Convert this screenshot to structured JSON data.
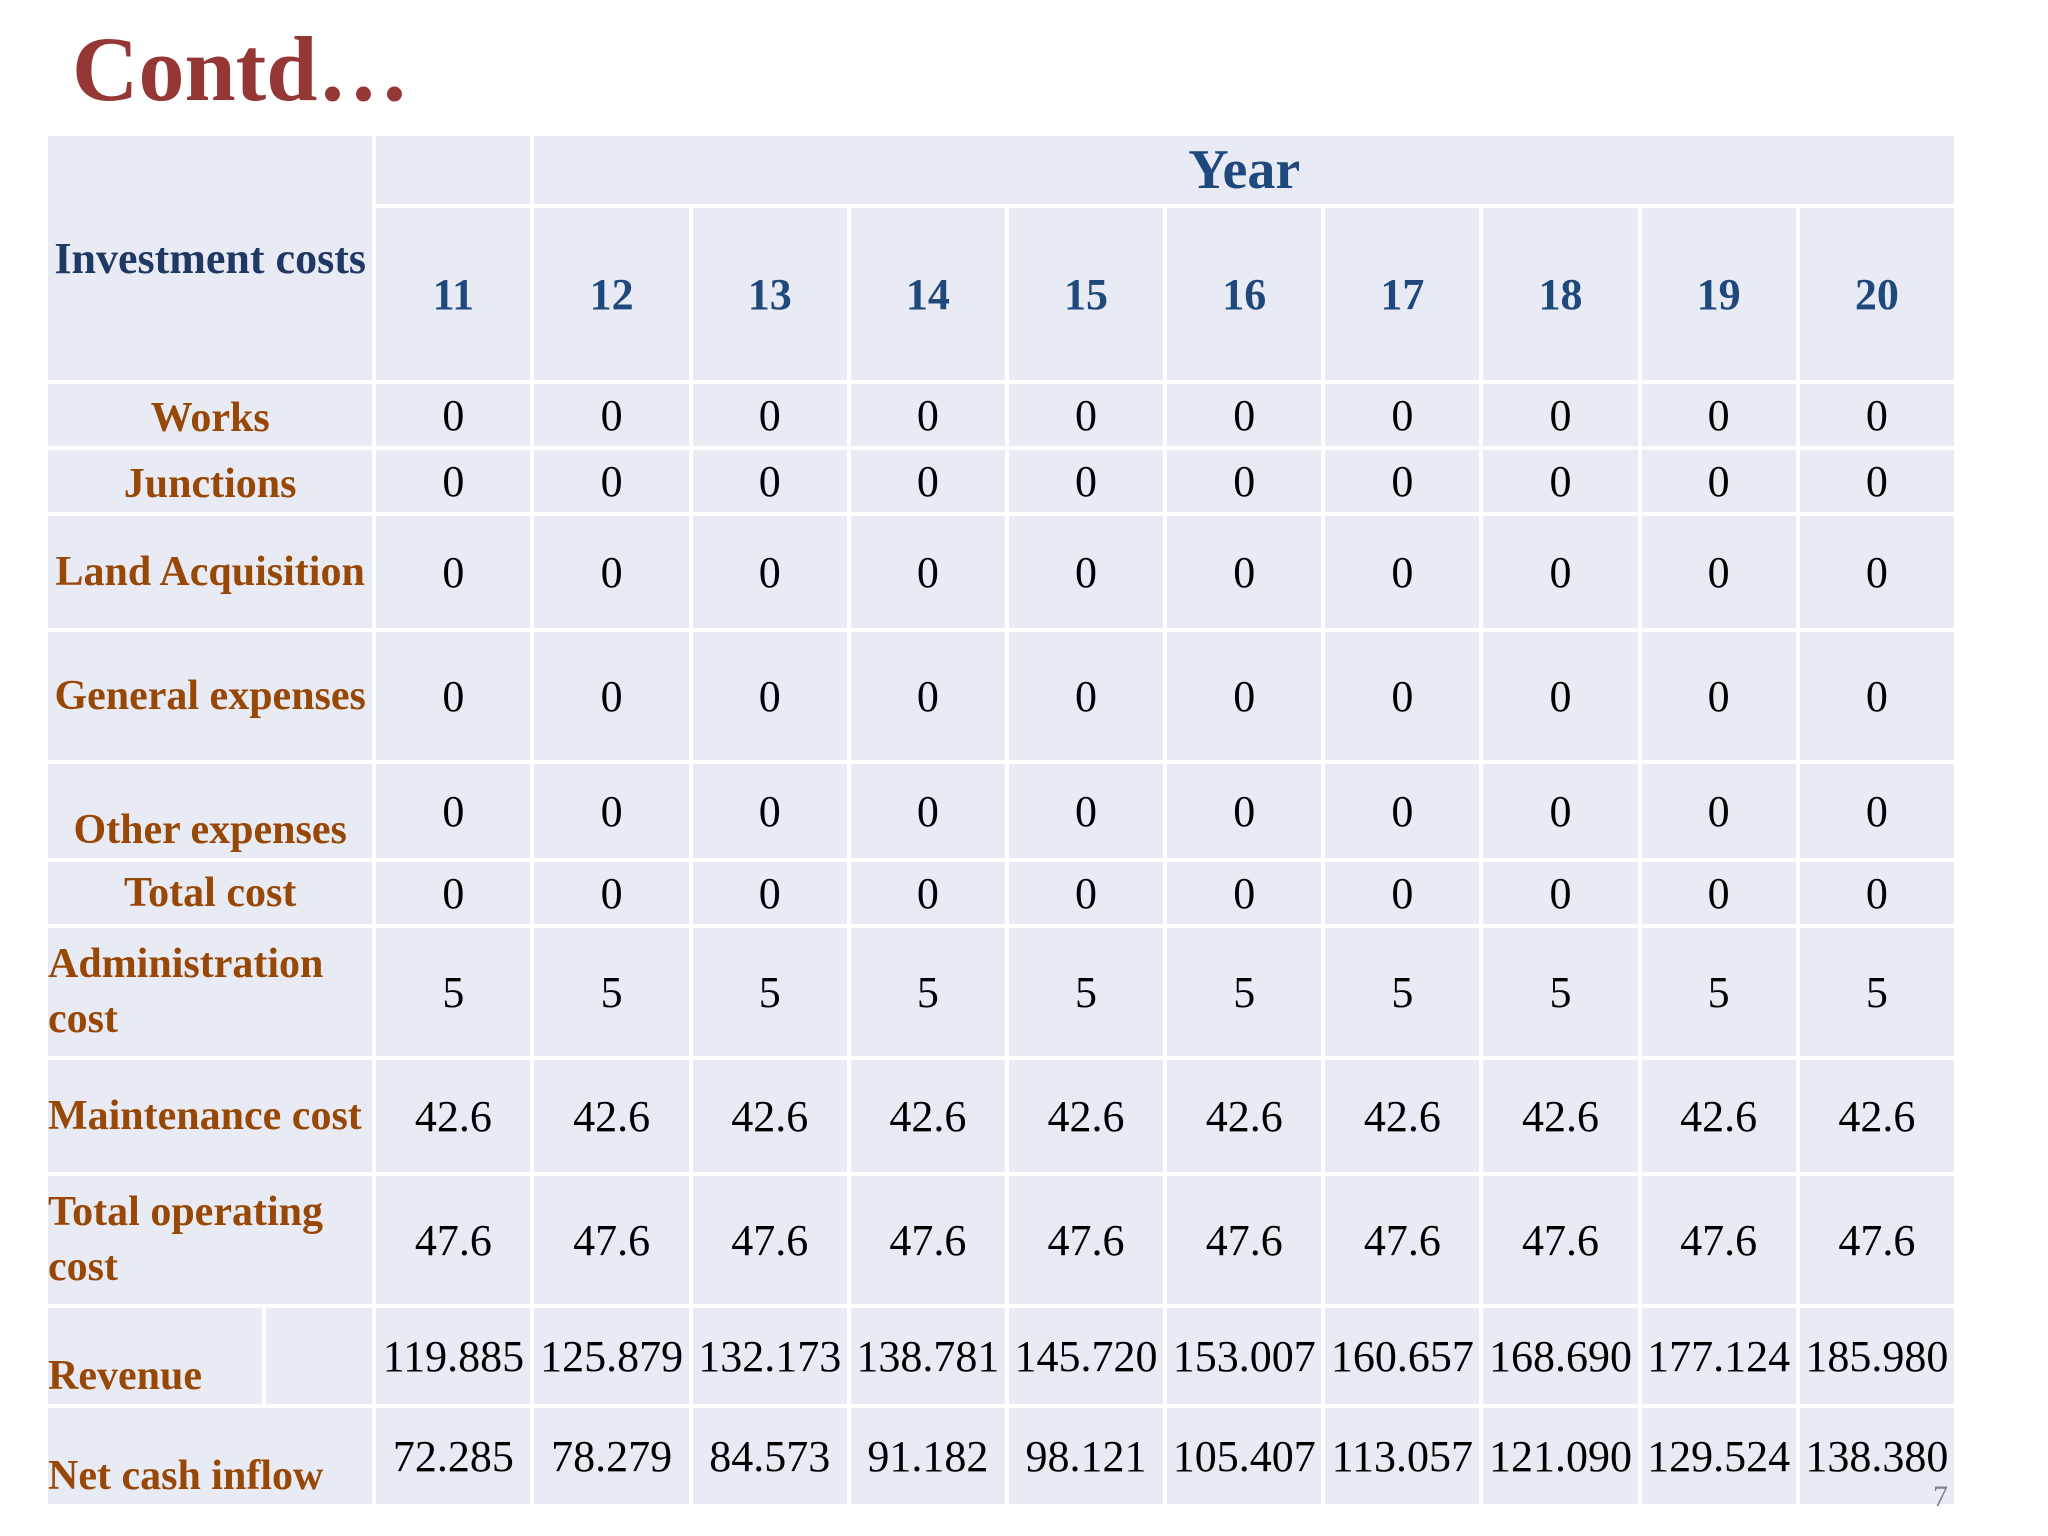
{
  "title": "Contd…",
  "table": {
    "corner_label": "Investment costs",
    "year_label": "Year",
    "years": [
      "11",
      "12",
      "13",
      "14",
      "15",
      "16",
      "17",
      "18",
      "19",
      "20"
    ],
    "rows": [
      {
        "label": "Works",
        "values": [
          "0",
          "0",
          "0",
          "0",
          "0",
          "0",
          "0",
          "0",
          "0",
          "0"
        ]
      },
      {
        "label": "Junctions",
        "values": [
          "0",
          "0",
          "0",
          "0",
          "0",
          "0",
          "0",
          "0",
          "0",
          "0"
        ]
      },
      {
        "label": "Land Acquisition",
        "values": [
          "0",
          "0",
          "0",
          "0",
          "0",
          "0",
          "0",
          "0",
          "0",
          "0"
        ]
      },
      {
        "label": "General expenses",
        "values": [
          "0",
          "0",
          "0",
          "0",
          "0",
          "0",
          "0",
          "0",
          "0",
          "0"
        ]
      },
      {
        "label": "Other expenses",
        "values": [
          "0",
          "0",
          "0",
          "0",
          "0",
          "0",
          "0",
          "0",
          "0",
          "0"
        ]
      },
      {
        "label": "Total cost",
        "values": [
          "0",
          "0",
          "0",
          "0",
          "0",
          "0",
          "0",
          "0",
          "0",
          "0"
        ]
      },
      {
        "label": "Administration cost",
        "values": [
          "5",
          "5",
          "5",
          "5",
          "5",
          "5",
          "5",
          "5",
          "5",
          "5"
        ]
      },
      {
        "label": "Maintenance cost",
        "values": [
          "42.6",
          "42.6",
          "42.6",
          "42.6",
          "42.6",
          "42.6",
          "42.6",
          "42.6",
          "42.6",
          "42.6"
        ]
      },
      {
        "label": "Total operating cost",
        "values": [
          "47.6",
          "47.6",
          "47.6",
          "47.6",
          "47.6",
          "47.6",
          "47.6",
          "47.6",
          "47.6",
          "47.6"
        ]
      },
      {
        "label": "Revenue",
        "values": [
          "119.885",
          "125.879",
          "132.173",
          "138.781",
          "145.720",
          "153.007",
          "160.657",
          "168.690",
          "177.124",
          "185.980"
        ]
      },
      {
        "label": "Net cash inflow",
        "values": [
          "72.285",
          "78.279",
          "84.573",
          "91.182",
          "98.121",
          "105.407",
          "113.057",
          "121.090",
          "129.524",
          "138.380"
        ]
      }
    ]
  },
  "page_number": "7"
}
